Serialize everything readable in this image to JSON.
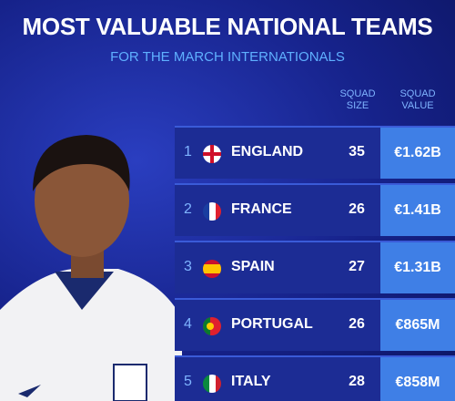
{
  "header": {
    "title": "MOST VALUABLE NATIONAL TEAMS",
    "subtitle": "FOR THE MARCH INTERNATIONALS"
  },
  "table": {
    "columns": [
      "SQUAD SIZE",
      "SQUAD VALUE"
    ],
    "rows": [
      [
        1,
        "ENGLAND",
        35,
        "€1.62B"
      ],
      [
        2,
        "FRANCE",
        26,
        "€1.41B"
      ],
      [
        3,
        "SPAIN",
        27,
        "€1.31B"
      ],
      [
        4,
        "PORTUGAL",
        26,
        "€865M"
      ],
      [
        5,
        "ITALY",
        28,
        "€858M"
      ]
    ]
  }
}
